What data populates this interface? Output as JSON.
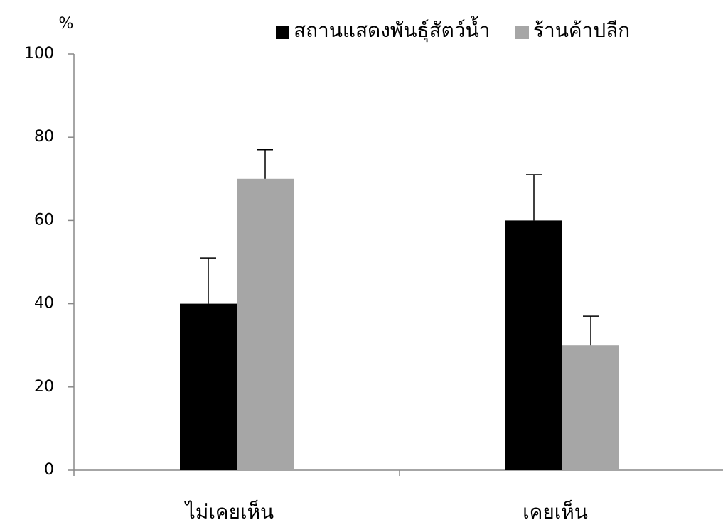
{
  "chart_data": {
    "type": "bar",
    "y_label": "%",
    "categories": [
      "ไม่เคยเห็น",
      "เคยเห็น"
    ],
    "series": [
      {
        "name": "สถานแสดงพันธุ์สัตว์น้ำ",
        "color": "#000000",
        "values": [
          40,
          60
        ],
        "errors": [
          11,
          11
        ]
      },
      {
        "name": "ร้านค้าปลีก",
        "color": "#a6a6a6",
        "values": [
          70,
          30
        ],
        "errors": [
          7,
          7
        ]
      }
    ],
    "ylim": [
      0,
      100
    ],
    "yticks": [
      0,
      20,
      40,
      60,
      80,
      100
    ],
    "grid": false,
    "legend": "top-right"
  }
}
